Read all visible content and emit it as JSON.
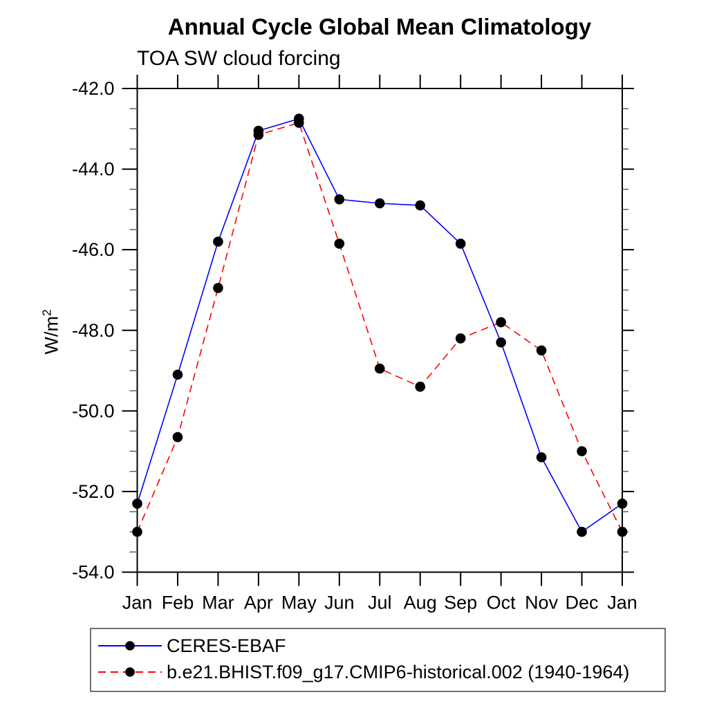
{
  "title": "Annual Cycle Global Mean Climatology",
  "subtitle": "TOA SW cloud forcing",
  "chart_data": {
    "type": "line",
    "categories": [
      "Jan",
      "Feb",
      "Mar",
      "Apr",
      "May",
      "Jun",
      "Jul",
      "Aug",
      "Sep",
      "Oct",
      "Nov",
      "Dec",
      "Jan"
    ],
    "ylabel": "W/m²",
    "ylabel_base": "W/m",
    "ylabel_exponent": "2",
    "ylim": [
      -54.0,
      -42.0
    ],
    "ytick_step": 2.0,
    "yminor_step": 0.5,
    "ytick_labels": [
      "-42.0",
      "-44.0",
      "-46.0",
      "-48.0",
      "-50.0",
      "-52.0",
      "-54.0"
    ],
    "grid": false,
    "legend_position": "bottom-left",
    "axis_color": "#000000",
    "marker": "filled-black-circle",
    "series": [
      {
        "name": "CERES-EBAF",
        "color": "#0000ff",
        "style": "solid",
        "values": [
          -52.3,
          -49.1,
          -45.8,
          -43.05,
          -42.75,
          -44.75,
          -44.85,
          -44.9,
          -45.85,
          -48.3,
          -51.15,
          -53.0,
          -52.3
        ]
      },
      {
        "name": "b.e21.BHIST.f09_g17.CMIP6-historical.002 (1940-1964)",
        "color": "#ff0000",
        "style": "dashed",
        "values": [
          -53.0,
          -50.65,
          -46.95,
          -43.15,
          -42.85,
          -45.85,
          -48.95,
          -49.4,
          -48.2,
          -47.8,
          -48.5,
          -51.0,
          -53.0
        ]
      }
    ]
  }
}
